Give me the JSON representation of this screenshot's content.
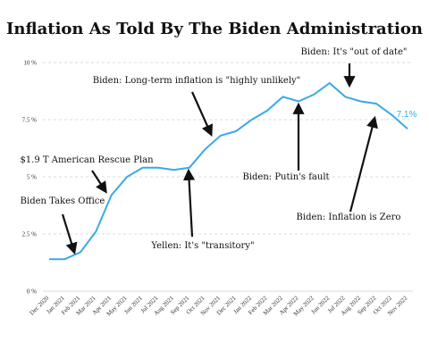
{
  "title": "Inflation As Told By The Biden Administration",
  "chart_data": {
    "type": "line",
    "title": "Inflation As Told By The Biden Administration",
    "x": [
      "Dec 2020",
      "Jan 2021",
      "Feb 2021",
      "Mar 2021",
      "Apr 2021",
      "May 2021",
      "Jun 2021",
      "Jul 2021",
      "Aug 2021",
      "Sep 2021",
      "Oct 2021",
      "Nov 2021",
      "Dec 2021",
      "Jan 2022",
      "Feb 2022",
      "Mar 2022",
      "Apr 2022",
      "May 2022",
      "Jun 2022",
      "Jul 2022",
      "Aug 2022",
      "Sep 2022",
      "Oct 2022",
      "Nov 2022"
    ],
    "values": [
      1.4,
      1.4,
      1.7,
      2.6,
      4.2,
      5.0,
      5.4,
      5.4,
      5.3,
      5.4,
      6.2,
      6.8,
      7.0,
      7.5,
      7.9,
      8.5,
      8.3,
      8.6,
      9.1,
      8.5,
      8.3,
      8.2,
      7.7,
      7.1
    ],
    "ylim": [
      0,
      10
    ],
    "yticks": [
      "0 %",
      "2.5 %",
      "5 %",
      "7.5 %",
      "10 %"
    ],
    "ytick_values": [
      0,
      2.5,
      5,
      7.5,
      10
    ],
    "grid": "horizontal dashed",
    "line_color": "#39a9e8",
    "end_label": "7.1%",
    "annotations": [
      {
        "text": "Biden Takes Office",
        "target": "Jan 2021"
      },
      {
        "text": "$1.9 T American Rescue Plan",
        "target": "Mar 2021"
      },
      {
        "text": "Yellen: It's \"transitory\"",
        "target": "Sep 2021"
      },
      {
        "text": "Biden: Long-term inflation is \"highly unlikely\"",
        "target": "Nov 2021"
      },
      {
        "text": "Biden: Putin's fault",
        "target": "Apr 2022"
      },
      {
        "text": "Biden: It's \"out of date\"",
        "target": "Jul 2022"
      },
      {
        "text": "Biden: Inflation is Zero",
        "target": "Sep 2022"
      }
    ]
  }
}
